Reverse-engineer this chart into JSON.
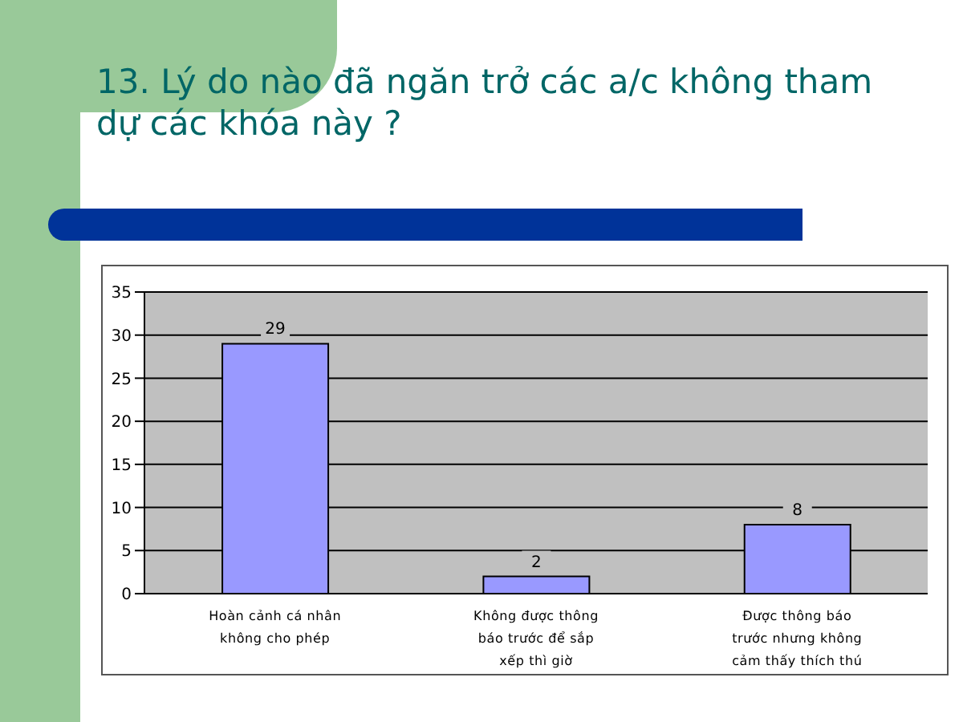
{
  "chart_data": {
    "type": "bar",
    "title": "13. Lý do nào đã ngăn trở các a/c không tham dự các khóa này ?",
    "categories": [
      "Hoàn cảnh cá nhân không cho phép",
      "Không được thông báo trước để sắp xếp thì giờ",
      "Được thông báo trước nhưng không cảm thấy thích thú"
    ],
    "values": [
      29,
      2,
      8
    ],
    "color": "#9999ff",
    "ylim": [
      0,
      35
    ],
    "yticks": [
      0,
      5,
      10,
      15,
      20,
      25,
      30,
      35
    ],
    "grid": "y",
    "data_labels": true
  }
}
